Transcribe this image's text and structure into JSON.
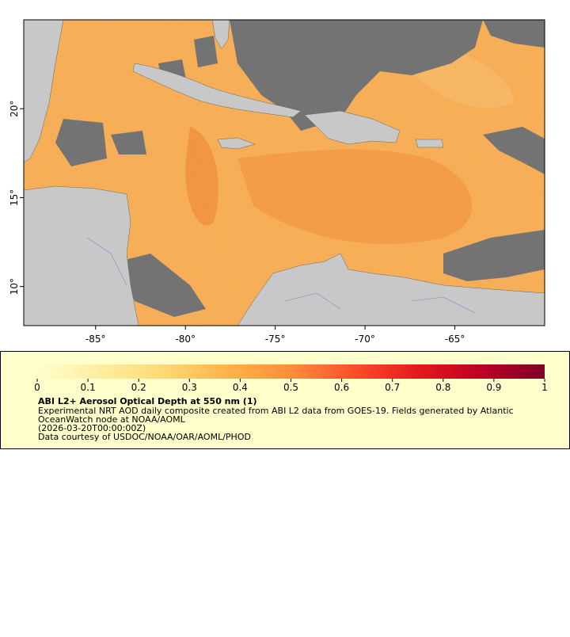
{
  "map": {
    "lon_range": [
      -89,
      -60
    ],
    "lat_range": [
      7.8,
      25
    ],
    "lon_ticks": [
      {
        "value": -85,
        "label": "-85°"
      },
      {
        "value": -80,
        "label": "-80°"
      },
      {
        "value": -75,
        "label": "-75°"
      },
      {
        "value": -70,
        "label": "-70°"
      },
      {
        "value": -65,
        "label": "-65°"
      }
    ],
    "lat_ticks": [
      {
        "value": 10,
        "label": "10°"
      },
      {
        "value": 15,
        "label": "15°"
      },
      {
        "value": 20,
        "label": "20°"
      }
    ]
  },
  "colorbar": {
    "range": [
      0,
      1
    ],
    "ticks": [
      0,
      0.1,
      0.2,
      0.3,
      0.4,
      0.5,
      0.6,
      0.7,
      0.8,
      0.9,
      1
    ]
  },
  "legend": {
    "title": "ABI L2+ Aerosol Optical Depth at 550 nm (1)",
    "description": [
      "Experimental NRT AOD daily composite created from ABI L2 data from GOES-19. Fields generated by Atlantic",
      "OceanWatch node at NOAA/AOML",
      "(2026-03-20T00:00:00Z)"
    ],
    "credit": "Data courtesy of USDOC/NOAA/OAR/AOML/PHOD"
  }
}
